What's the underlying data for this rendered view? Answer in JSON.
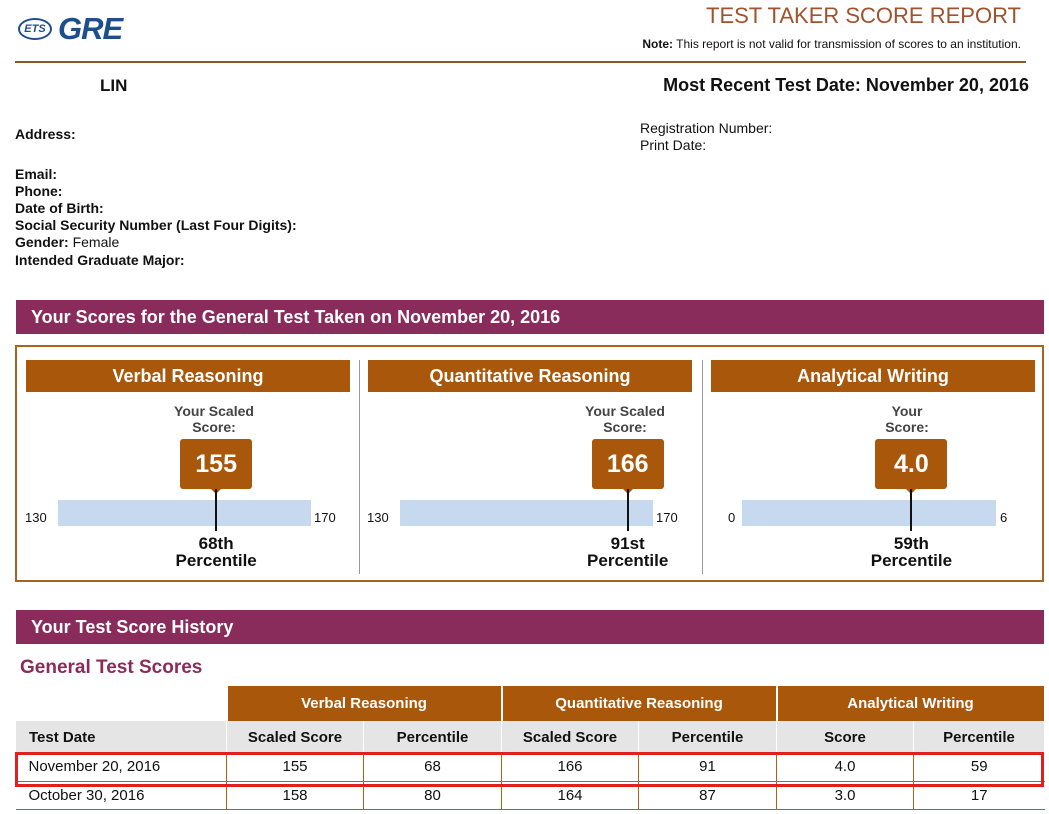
{
  "header": {
    "logo_ets": "ETS",
    "logo_gre": "GRE",
    "title": "TEST TAKER SCORE REPORT",
    "note_label": "Note:",
    "note_text": " This report is not valid for transmission of scores to an institution."
  },
  "taker": {
    "name": "LIN",
    "recent_label": "Most Recent Test Date:",
    "recent_date": "November 20, 2016",
    "address_label": "Address:",
    "email_label": "Email:",
    "phone_label": "Phone:",
    "dob_label": "Date of Birth:",
    "ssn_label": "Social Security Number (Last Four Digits):",
    "gender_label": "Gender:",
    "gender_value": "Female",
    "major_label": "Intended Graduate Major:",
    "registration_label": "Registration Number:",
    "print_date_label": "Print Date:"
  },
  "scores_banner": "Your Scores for the General Test Taken on November 20, 2016",
  "sections": [
    {
      "title": "Verbal Reasoning",
      "score_label_1": "Your Scaled",
      "score_label_2": "Score:",
      "score": "155",
      "min": "130",
      "max": "170",
      "pct_1": "68th",
      "pct_2": "Percentile",
      "level": 0.625
    },
    {
      "title": "Quantitative Reasoning",
      "score_label_1": "Your Scaled",
      "score_label_2": "Score:",
      "score": "166",
      "min": "130",
      "max": "170",
      "pct_1": "91st",
      "pct_2": "Percentile",
      "level": 0.9
    },
    {
      "title": "Analytical Writing",
      "score_label_1": "Your",
      "score_label_2": "Score:",
      "score": "4.0",
      "min": "0",
      "max": "6",
      "pct_1": "59th",
      "pct_2": "Percentile",
      "level": 0.667
    }
  ],
  "history_banner": "Your Test Score History",
  "history_subtitle": "General Test Scores",
  "history": {
    "groups": [
      "Verbal Reasoning",
      "Quantitative Reasoning",
      "Analytical Writing"
    ],
    "columns": [
      "Test Date",
      "Scaled Score",
      "Percentile",
      "Scaled Score",
      "Percentile",
      "Score",
      "Percentile"
    ],
    "rows": [
      [
        "November 20, 2016",
        "155",
        "68",
        "166",
        "91",
        "4.0",
        "59"
      ],
      [
        "October 30, 2016",
        "158",
        "80",
        "164",
        "87",
        "3.0",
        "17"
      ]
    ]
  },
  "colors": {
    "brand_blue": "#1f4e8c",
    "banner": "#8a2c5b",
    "accent": "#a9570a",
    "bar": "#c7d9ee",
    "highlight": "#e02020"
  }
}
